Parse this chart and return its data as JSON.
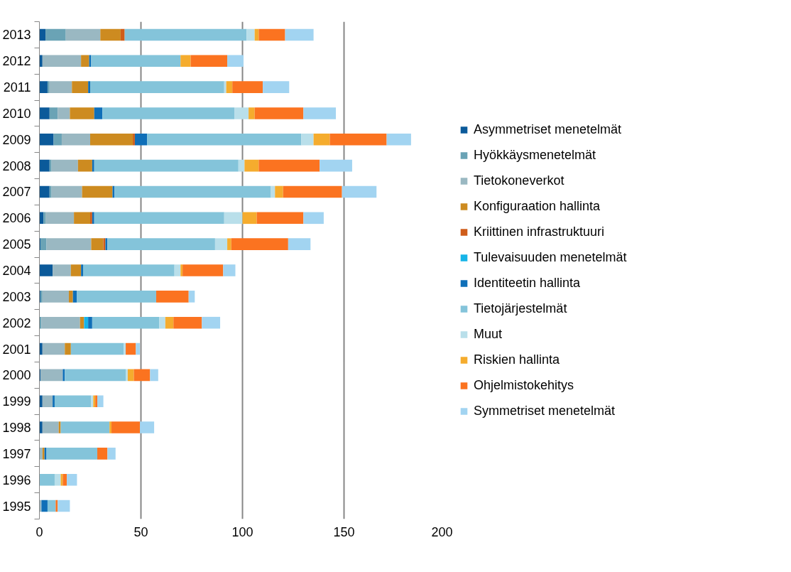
{
  "chart_data": {
    "type": "bar",
    "orientation": "horizontal",
    "stacked": true,
    "grid": "x",
    "legend": "right",
    "categories": [
      "2013",
      "2012",
      "2011",
      "2010",
      "2009",
      "2008",
      "2007",
      "2006",
      "2005",
      "2004",
      "2003",
      "2002",
      "2001",
      "2000",
      "1999",
      "1998",
      "1997",
      "1996",
      "1995"
    ],
    "xlim": [
      0,
      200
    ],
    "xticks": [
      0,
      50,
      100,
      150,
      200
    ],
    "series": [
      {
        "name": "Asymmetriset menetelmät",
        "color": "#0b5a9a",
        "values": [
          3,
          1.5,
          4,
          5,
          7,
          5,
          5,
          2,
          0.5,
          6.5,
          0.5,
          0,
          1.5,
          0.5,
          1.5,
          1.5,
          0,
          0,
          0
        ]
      },
      {
        "name": "Hyökkäysmenetelmät",
        "color": "#6aa3b5",
        "values": [
          10,
          0,
          1,
          4,
          4,
          1,
          1,
          1,
          3,
          0,
          1,
          1,
          0,
          0,
          0,
          0,
          0,
          0,
          0
        ]
      },
      {
        "name": "Tietokoneverkot",
        "color": "#9ab8c2",
        "values": [
          17,
          19,
          11,
          6,
          14,
          13,
          15,
          14,
          22,
          9,
          13,
          19,
          11,
          11,
          5,
          8,
          1.5,
          0,
          1
        ]
      },
      {
        "name": "Konfiguraation hallinta",
        "color": "#cd8b20",
        "values": [
          10,
          4,
          8,
          12,
          21,
          7,
          15,
          8,
          6,
          5,
          2,
          2,
          3,
          0,
          0,
          1,
          1,
          0,
          0
        ]
      },
      {
        "name": "Kriittinen infrastruktuuri",
        "color": "#cf5d1a",
        "values": [
          2,
          0,
          0,
          0,
          1,
          0,
          0,
          1,
          1,
          0,
          0,
          0,
          0,
          0,
          0,
          0,
          0,
          0,
          0
        ]
      },
      {
        "name": "Tulevaisuuden menetelmät",
        "color": "#16b4e8",
        "values": [
          0,
          0,
          0,
          0,
          0,
          0,
          0,
          0,
          0,
          0,
          0,
          2,
          0,
          0,
          0,
          0,
          0,
          0,
          0
        ]
      },
      {
        "name": "Identiteetin hallinta",
        "color": "#0f6fb8",
        "values": [
          0,
          1,
          1,
          4,
          6,
          1,
          1,
          1,
          1,
          1,
          2,
          2,
          0,
          1,
          1,
          0,
          1,
          0,
          3
        ]
      },
      {
        "name": "Tietojärjestelmät",
        "color": "#84c4da",
        "values": [
          60,
          44,
          66,
          65,
          76,
          71,
          77,
          64,
          53,
          45,
          39,
          33,
          26,
          30,
          18,
          24,
          25,
          7.5,
          4
        ]
      },
      {
        "name": "Muut",
        "color": "#b9dfea",
        "values": [
          4,
          0,
          1,
          7,
          6,
          3,
          2,
          9,
          6,
          3,
          0,
          3,
          1,
          1,
          1,
          0,
          0,
          3,
          0
        ]
      },
      {
        "name": "Riskien hallinta",
        "color": "#f5ac2e",
        "values": [
          2,
          5,
          3,
          3,
          8,
          7,
          4,
          7,
          2,
          1,
          0,
          4,
          0,
          3,
          1,
          1,
          0,
          1,
          0
        ]
      },
      {
        "name": "Ohjelmistokehitys",
        "color": "#fb7320",
        "values": [
          13,
          18,
          15,
          24,
          28,
          30,
          29,
          23,
          28,
          20,
          16,
          14,
          5,
          8,
          1,
          14,
          5,
          2,
          1
        ]
      },
      {
        "name": "Symmetriset menetelmät",
        "color": "#a2d4f1",
        "values": [
          14,
          8,
          13,
          16,
          12,
          16,
          17,
          10,
          11,
          6,
          3,
          9,
          2,
          4,
          3,
          7,
          4,
          5,
          6
        ]
      }
    ]
  }
}
